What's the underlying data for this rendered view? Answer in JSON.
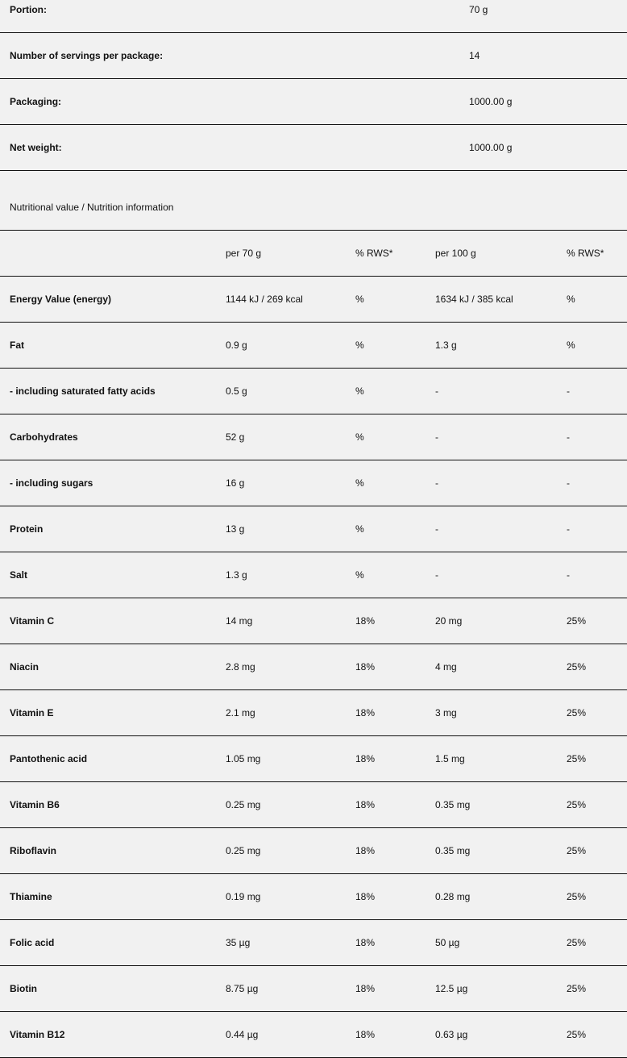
{
  "product_info": [
    {
      "label": "Portion:",
      "value": "70 g"
    },
    {
      "label": "Number of servings per package:",
      "value": "14"
    },
    {
      "label": "Packaging:",
      "value": "1000.00 g"
    },
    {
      "label": "Net weight:",
      "value": "1000.00 g"
    }
  ],
  "nutrition": {
    "title": "Nutritional value / Nutrition information",
    "headers": [
      "",
      "per 70 g",
      "% RWS*",
      "per 100 g",
      "% RWS*"
    ],
    "rows": [
      [
        "Energy Value (energy)",
        "1144 kJ / 269 kcal",
        "%",
        "1634 kJ / 385 kcal",
        "%"
      ],
      [
        "Fat",
        "0.9 g",
        "%",
        "1.3 g",
        "%"
      ],
      [
        "- including saturated fatty acids",
        "0.5 g",
        "%",
        "-",
        "-"
      ],
      [
        "Carbohydrates",
        "52 g",
        "%",
        "-",
        "-"
      ],
      [
        "- including sugars",
        "16 g",
        "%",
        "-",
        "-"
      ],
      [
        "Protein",
        "13 g",
        "%",
        "-",
        "-"
      ],
      [
        "Salt",
        "1.3 g",
        "%",
        "-",
        "-"
      ],
      [
        "Vitamin C",
        "14 mg",
        "18%",
        "20 mg",
        "25%"
      ],
      [
        "Niacin",
        "2.8 mg",
        "18%",
        "4 mg",
        "25%"
      ],
      [
        "Vitamin E",
        "2.1 mg",
        "18%",
        "3 mg",
        "25%"
      ],
      [
        "Pantothenic acid",
        "1.05 mg",
        "18%",
        "1.5 mg",
        "25%"
      ],
      [
        "Vitamin B6",
        "0.25 mg",
        "18%",
        "0.35 mg",
        "25%"
      ],
      [
        "Riboflavin",
        "0.25 mg",
        "18%",
        "0.35 mg",
        "25%"
      ],
      [
        "Thiamine",
        "0.19 mg",
        "18%",
        "0.28 mg",
        "25%"
      ],
      [
        "Folic acid",
        "35 µg",
        "18%",
        "50 µg",
        "25%"
      ],
      [
        "Biotin",
        "8.75 µg",
        "18%",
        "12.5 µg",
        "25%"
      ],
      [
        "Vitamin B12",
        "0.44 µg",
        "18%",
        "0.63 µg",
        "25%"
      ]
    ]
  }
}
